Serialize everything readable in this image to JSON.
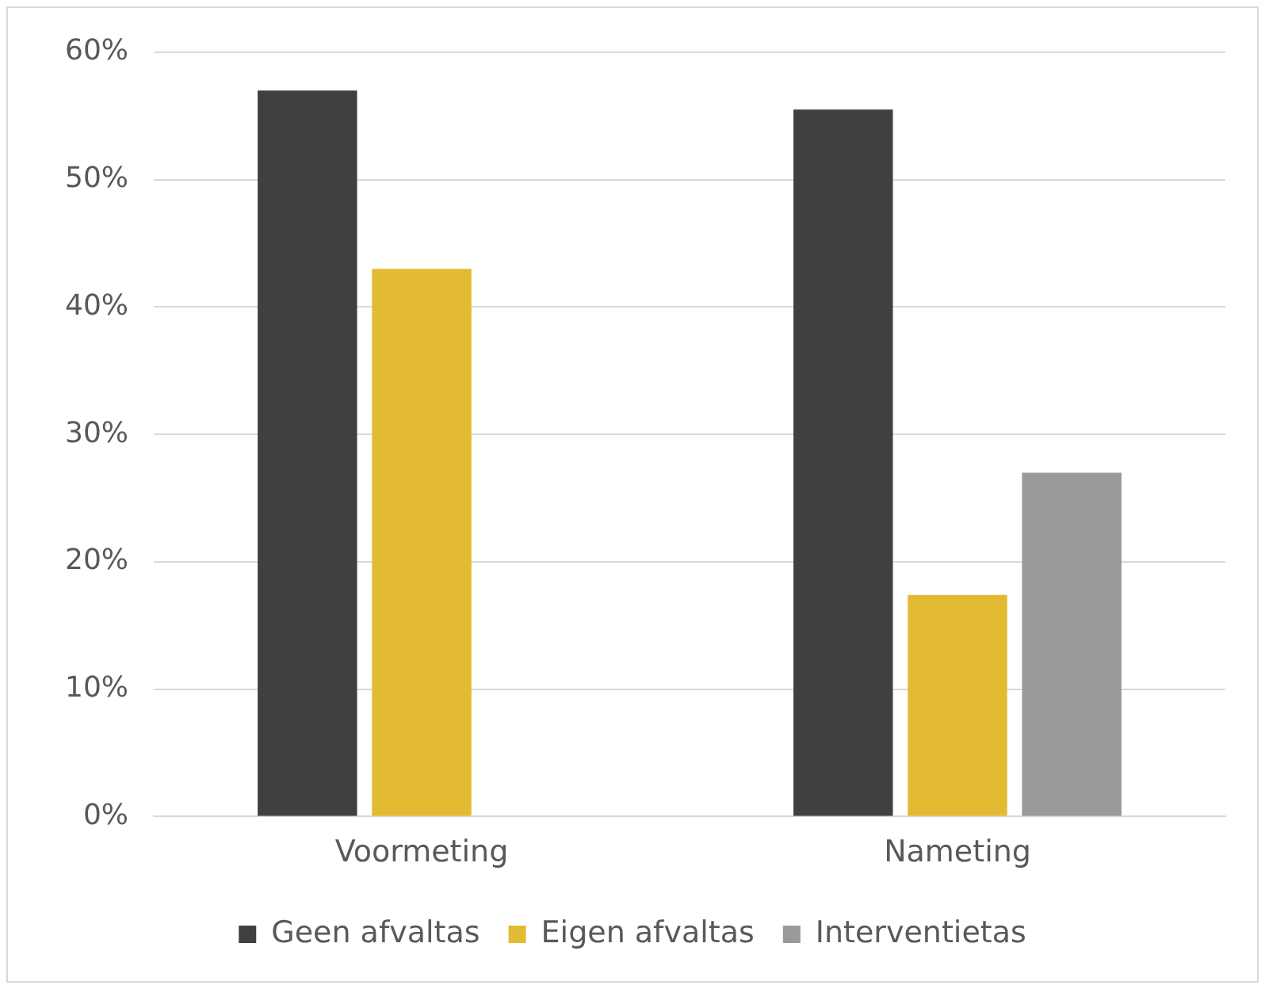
{
  "chart_data": {
    "type": "bar",
    "categories": [
      "Voormeting",
      "Nameting"
    ],
    "series": [
      {
        "name": "Geen afvaltas",
        "color": "#404040",
        "values": [
          57,
          55.5
        ]
      },
      {
        "name": "Eigen afvaltas",
        "color": "#e2bb33",
        "values": [
          43,
          17.4
        ]
      },
      {
        "name": "Interventietas",
        "color": "#999999",
        "values": [
          0,
          27
        ]
      }
    ],
    "ylim": [
      0,
      60
    ],
    "yticks": [
      {
        "value": 0,
        "label": "0%"
      },
      {
        "value": 10,
        "label": "10%"
      },
      {
        "value": 20,
        "label": "20%"
      },
      {
        "value": 30,
        "label": "30%"
      },
      {
        "value": 40,
        "label": "40%"
      },
      {
        "value": 50,
        "label": "50%"
      },
      {
        "value": 60,
        "label": "60%"
      }
    ],
    "grid": "y",
    "legend": "bottom"
  }
}
